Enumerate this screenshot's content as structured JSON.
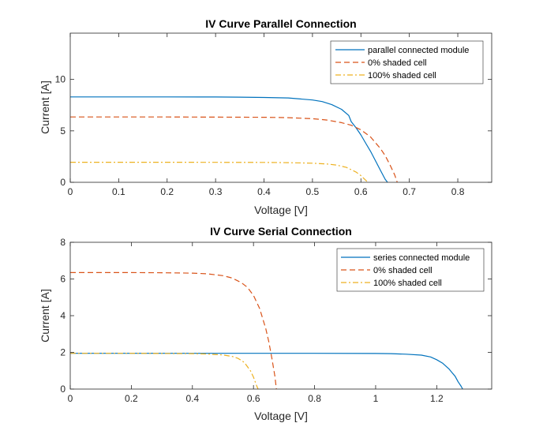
{
  "chart_data": [
    {
      "type": "line",
      "title": "IV Curve Parallel Connection",
      "xlabel": "Voltage [V]",
      "ylabel": "Current [A]",
      "xlim": [
        0,
        0.87
      ],
      "ylim": [
        0,
        14.5
      ],
      "xticks": [
        "0",
        "0.1",
        "0.2",
        "0.3",
        "0.4",
        "0.5",
        "0.6",
        "0.7",
        "0.8"
      ],
      "xtick_values": [
        0,
        0.1,
        0.2,
        0.3,
        0.4,
        0.5,
        0.6,
        0.7,
        0.8
      ],
      "yticks": [
        "0",
        "5",
        "10"
      ],
      "ytick_values": [
        0,
        5,
        10
      ],
      "legend_position": "top-right",
      "series": [
        {
          "name": "parallel connected module",
          "color": "#0072BD",
          "style": "solid",
          "x": [
            0,
            0.1,
            0.2,
            0.3,
            0.35,
            0.4,
            0.45,
            0.5,
            0.52,
            0.54,
            0.56,
            0.575,
            0.58,
            0.59,
            0.6,
            0.61,
            0.62,
            0.63,
            0.64,
            0.65,
            0.655
          ],
          "y": [
            8.3,
            8.3,
            8.3,
            8.29,
            8.28,
            8.25,
            8.2,
            8.0,
            7.85,
            7.55,
            7.1,
            6.5,
            5.9,
            5.3,
            4.6,
            3.8,
            3.0,
            2.1,
            1.2,
            0.3,
            0
          ]
        },
        {
          "name": "0% shaded cell",
          "color": "#D95319",
          "style": "dashed",
          "x": [
            0,
            0.1,
            0.2,
            0.3,
            0.4,
            0.45,
            0.5,
            0.53,
            0.56,
            0.58,
            0.6,
            0.62,
            0.64,
            0.65,
            0.66,
            0.67,
            0.675
          ],
          "y": [
            6.35,
            6.35,
            6.35,
            6.34,
            6.32,
            6.28,
            6.18,
            6.05,
            5.8,
            5.55,
            5.1,
            4.4,
            3.3,
            2.6,
            1.7,
            0.7,
            0
          ]
        },
        {
          "name": "100% shaded cell",
          "color": "#EDB120",
          "style": "dashdot",
          "x": [
            0,
            0.1,
            0.2,
            0.3,
            0.4,
            0.45,
            0.5,
            0.53,
            0.55,
            0.57,
            0.59,
            0.6,
            0.61,
            0.615
          ],
          "y": [
            1.95,
            1.95,
            1.95,
            1.94,
            1.93,
            1.91,
            1.86,
            1.78,
            1.67,
            1.45,
            1.0,
            0.65,
            0.2,
            0
          ]
        }
      ]
    },
    {
      "type": "line",
      "title": "IV Curve Serial Connection",
      "xlabel": "Voltage [V]",
      "ylabel": "Current [A]",
      "xlim": [
        0,
        1.38
      ],
      "ylim": [
        0,
        8
      ],
      "xticks": [
        "0",
        "0.2",
        "0.4",
        "0.6",
        "0.8",
        "1",
        "1.2"
      ],
      "xtick_values": [
        0,
        0.2,
        0.4,
        0.6,
        0.8,
        1.0,
        1.2
      ],
      "yticks": [
        "0",
        "2",
        "4",
        "6",
        "8"
      ],
      "ytick_values": [
        0,
        2,
        4,
        6,
        8
      ],
      "legend_position": "top-right",
      "series": [
        {
          "name": "series connected module",
          "color": "#0072BD",
          "style": "solid",
          "x": [
            0,
            0.2,
            0.4,
            0.6,
            0.8,
            1.0,
            1.05,
            1.1,
            1.15,
            1.18,
            1.2,
            1.22,
            1.24,
            1.25,
            1.26,
            1.27,
            1.28,
            1.285
          ],
          "y": [
            1.95,
            1.95,
            1.95,
            1.95,
            1.95,
            1.94,
            1.93,
            1.9,
            1.85,
            1.75,
            1.6,
            1.4,
            1.1,
            0.9,
            0.7,
            0.4,
            0.15,
            0
          ]
        },
        {
          "name": "0% shaded cell",
          "color": "#D95319",
          "style": "dashed",
          "x": [
            0,
            0.1,
            0.2,
            0.3,
            0.4,
            0.45,
            0.5,
            0.53,
            0.56,
            0.58,
            0.6,
            0.62,
            0.64,
            0.65,
            0.66,
            0.67,
            0.675
          ],
          "y": [
            6.35,
            6.35,
            6.35,
            6.34,
            6.32,
            6.28,
            6.18,
            6.05,
            5.8,
            5.55,
            5.1,
            4.4,
            3.3,
            2.6,
            1.7,
            0.7,
            0
          ]
        },
        {
          "name": "100% shaded cell",
          "color": "#EDB120",
          "style": "dashdot",
          "x": [
            0,
            0.1,
            0.2,
            0.3,
            0.4,
            0.45,
            0.5,
            0.53,
            0.55,
            0.57,
            0.59,
            0.6,
            0.61,
            0.615
          ],
          "y": [
            1.95,
            1.95,
            1.95,
            1.94,
            1.93,
            1.91,
            1.86,
            1.78,
            1.67,
            1.45,
            1.0,
            0.65,
            0.2,
            0
          ]
        }
      ]
    }
  ]
}
